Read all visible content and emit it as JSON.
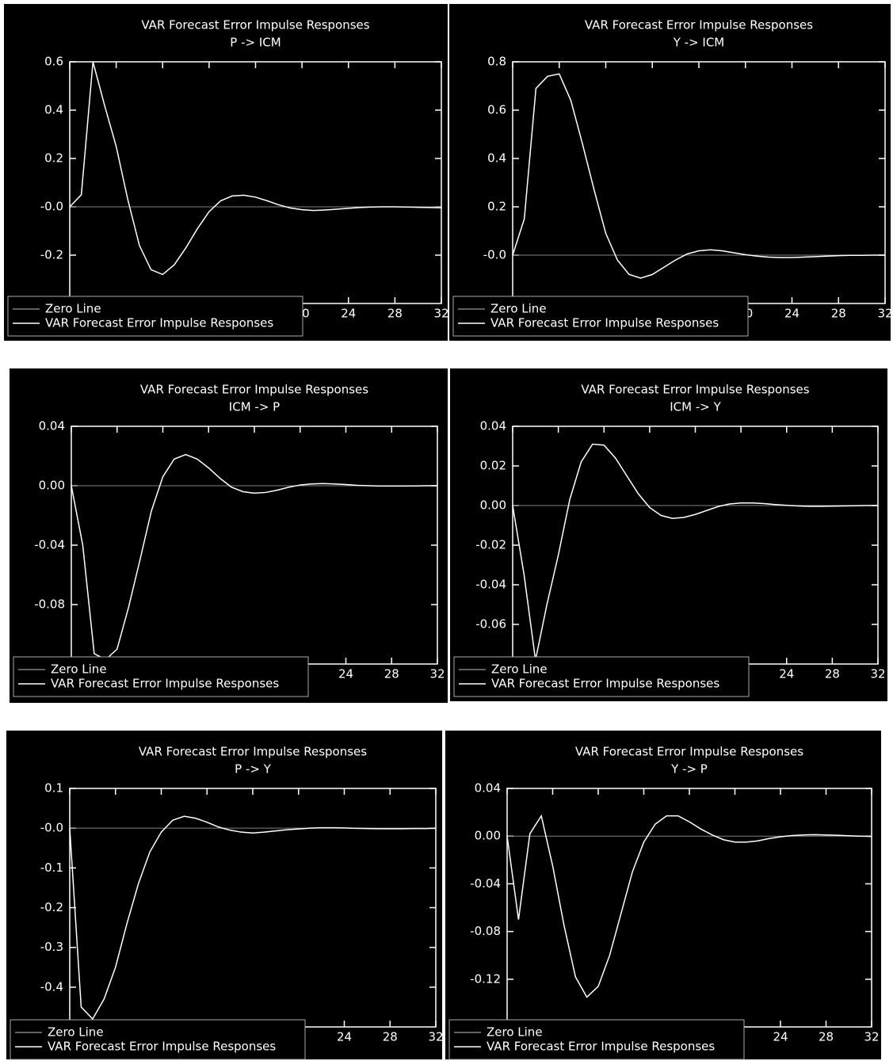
{
  "chart_data": [
    {
      "type": "line",
      "title": "VAR Forecast Error Impulse Responses",
      "subtitle": "P -> ICM",
      "x": [
        0,
        1,
        2,
        3,
        4,
        5,
        6,
        7,
        8,
        9,
        10,
        11,
        12,
        13,
        14,
        15,
        16,
        17,
        18,
        19,
        20,
        21,
        22,
        23,
        24,
        25,
        26,
        27,
        28,
        29,
        30,
        31,
        32
      ],
      "xlim": [
        0,
        32
      ],
      "xticks": [
        0,
        4,
        8,
        12,
        16,
        20,
        24,
        28,
        32
      ],
      "ylim": [
        -0.4,
        0.6
      ],
      "yticks": [
        0.6,
        0.4,
        0.2,
        {
          "value": 0,
          "label": "-0.0"
        },
        -0.2
      ],
      "series": [
        {
          "name": "Zero Line",
          "color": "#808080",
          "values": [
            0,
            0,
            0,
            0,
            0,
            0,
            0,
            0,
            0,
            0,
            0,
            0,
            0,
            0,
            0,
            0,
            0,
            0,
            0,
            0,
            0,
            0,
            0,
            0,
            0,
            0,
            0,
            0,
            0,
            0,
            0,
            0,
            0
          ]
        },
        {
          "name": "VAR Forecast Error Impulse Responses",
          "color": "#ffffff",
          "values": [
            0,
            0.05,
            0.6,
            0.42,
            0.25,
            0.03,
            -0.16,
            -0.26,
            -0.28,
            -0.24,
            -0.17,
            -0.09,
            -0.02,
            0.025,
            0.045,
            0.048,
            0.04,
            0.025,
            0.008,
            -0.005,
            -0.012,
            -0.015,
            -0.013,
            -0.01,
            -0.006,
            -0.003,
            -0.001,
            0,
            0,
            -0.001,
            -0.002,
            -0.003,
            -0.004
          ]
        }
      ]
    },
    {
      "type": "line",
      "title": "VAR Forecast Error Impulse Responses",
      "subtitle": "Y -> ICM",
      "x": [
        0,
        1,
        2,
        3,
        4,
        5,
        6,
        7,
        8,
        9,
        10,
        11,
        12,
        13,
        14,
        15,
        16,
        17,
        18,
        19,
        20,
        21,
        22,
        23,
        24,
        25,
        26,
        27,
        28,
        29,
        30,
        31,
        32
      ],
      "xlim": [
        0,
        32
      ],
      "xticks": [
        0,
        4,
        8,
        12,
        16,
        20,
        24,
        28,
        32
      ],
      "ylim": [
        -0.2,
        0.8
      ],
      "yticks": [
        0.8,
        0.6,
        0.4,
        0.2,
        {
          "value": 0,
          "label": "-0.0"
        }
      ],
      "series": [
        {
          "name": "Zero Line",
          "color": "#808080",
          "values": [
            0,
            0,
            0,
            0,
            0,
            0,
            0,
            0,
            0,
            0,
            0,
            0,
            0,
            0,
            0,
            0,
            0,
            0,
            0,
            0,
            0,
            0,
            0,
            0,
            0,
            0,
            0,
            0,
            0,
            0,
            0,
            0,
            0
          ]
        },
        {
          "name": "VAR Forecast Error Impulse Responses",
          "color": "#ffffff",
          "values": [
            0,
            0.15,
            0.69,
            0.74,
            0.75,
            0.64,
            0.46,
            0.27,
            0.09,
            -0.02,
            -0.08,
            -0.095,
            -0.08,
            -0.05,
            -0.02,
            0.005,
            0.018,
            0.022,
            0.018,
            0.01,
            0.002,
            -0.004,
            -0.008,
            -0.01,
            -0.01,
            -0.008,
            -0.006,
            -0.004,
            -0.002,
            -0.001,
            -0.001,
            0,
            0
          ]
        }
      ]
    },
    {
      "type": "line",
      "title": "VAR Forecast Error Impulse Responses",
      "subtitle": "ICM -> P",
      "x": [
        0,
        1,
        2,
        3,
        4,
        5,
        6,
        7,
        8,
        9,
        10,
        11,
        12,
        13,
        14,
        15,
        16,
        17,
        18,
        19,
        20,
        21,
        22,
        23,
        24,
        25,
        26,
        27,
        28,
        29,
        30,
        31,
        32
      ],
      "xlim": [
        0,
        32
      ],
      "xticks": [
        0,
        4,
        8,
        12,
        16,
        20,
        24,
        28,
        32
      ],
      "ylim": [
        -0.12,
        0.04
      ],
      "yticks": [
        0.04,
        {
          "value": 0,
          "label": "0.00"
        },
        -0.04,
        -0.08
      ],
      "series": [
        {
          "name": "Zero Line",
          "color": "#808080",
          "values": [
            0,
            0,
            0,
            0,
            0,
            0,
            0,
            0,
            0,
            0,
            0,
            0,
            0,
            0,
            0,
            0,
            0,
            0,
            0,
            0,
            0,
            0,
            0,
            0,
            0,
            0,
            0,
            0,
            0,
            0,
            0,
            0,
            0
          ]
        },
        {
          "name": "VAR Forecast Error Impulse Responses",
          "color": "#ffffff",
          "values": [
            0,
            -0.04,
            -0.113,
            -0.117,
            -0.11,
            -0.082,
            -0.05,
            -0.017,
            0.006,
            0.018,
            0.021,
            0.018,
            0.012,
            0.005,
            -0.001,
            -0.004,
            -0.005,
            -0.0045,
            -0.003,
            -0.001,
            0.0005,
            0.0012,
            0.0015,
            0.0012,
            0.0008,
            0.0003,
            0,
            -0.0002,
            -0.0002,
            -0.0002,
            -0.0001,
            0,
            0
          ]
        }
      ]
    },
    {
      "type": "line",
      "title": "VAR Forecast Error Impulse Responses",
      "subtitle": "ICM -> Y",
      "x": [
        0,
        1,
        2,
        3,
        4,
        5,
        6,
        7,
        8,
        9,
        10,
        11,
        12,
        13,
        14,
        15,
        16,
        17,
        18,
        19,
        20,
        21,
        22,
        23,
        24,
        25,
        26,
        27,
        28,
        29,
        30,
        31,
        32
      ],
      "xlim": [
        0,
        32
      ],
      "xticks": [
        0,
        4,
        8,
        12,
        16,
        20,
        24,
        28,
        32
      ],
      "ylim": [
        -0.08,
        0.04
      ],
      "yticks": [
        0.04,
        0.02,
        {
          "value": 0,
          "label": "0.00"
        },
        -0.02,
        -0.04,
        -0.06
      ],
      "series": [
        {
          "name": "Zero Line",
          "color": "#808080",
          "values": [
            0,
            0,
            0,
            0,
            0,
            0,
            0,
            0,
            0,
            0,
            0,
            0,
            0,
            0,
            0,
            0,
            0,
            0,
            0,
            0,
            0,
            0,
            0,
            0,
            0,
            0,
            0,
            0,
            0,
            0,
            0,
            0,
            0
          ]
        },
        {
          "name": "VAR Forecast Error Impulse Responses",
          "color": "#ffffff",
          "values": [
            0,
            -0.035,
            -0.078,
            -0.05,
            -0.025,
            0.003,
            0.022,
            0.031,
            0.0305,
            0.024,
            0.015,
            0.006,
            -0.001,
            -0.005,
            -0.0065,
            -0.006,
            -0.0045,
            -0.0025,
            -0.0005,
            0.0008,
            0.0013,
            0.0013,
            0.001,
            0.0005,
            0.0001,
            -0.0002,
            -0.0004,
            -0.0004,
            -0.0003,
            -0.0002,
            -0.0001,
            0,
            0
          ]
        }
      ]
    },
    {
      "type": "line",
      "title": "VAR Forecast Error Impulse Responses",
      "subtitle": "P -> Y",
      "x": [
        0,
        1,
        2,
        3,
        4,
        5,
        6,
        7,
        8,
        9,
        10,
        11,
        12,
        13,
        14,
        15,
        16,
        17,
        18,
        19,
        20,
        21,
        22,
        23,
        24,
        25,
        26,
        27,
        28,
        29,
        30,
        31,
        32
      ],
      "xlim": [
        0,
        32
      ],
      "xticks": [
        0,
        4,
        8,
        12,
        16,
        20,
        24,
        28,
        32
      ],
      "ylim": [
        -0.5,
        0.1
      ],
      "yticks": [
        0.1,
        {
          "value": 0,
          "label": "-0.0"
        },
        -0.1,
        -0.2,
        -0.3,
        -0.4
      ],
      "series": [
        {
          "name": "Zero Line",
          "color": "#808080",
          "values": [
            0,
            0,
            0,
            0,
            0,
            0,
            0,
            0,
            0,
            0,
            0,
            0,
            0,
            0,
            0,
            0,
            0,
            0,
            0,
            0,
            0,
            0,
            0,
            0,
            0,
            0,
            0,
            0,
            0,
            0,
            0,
            0,
            0
          ]
        },
        {
          "name": "VAR Forecast Error Impulse Responses",
          "color": "#ffffff",
          "values": [
            0,
            -0.45,
            -0.48,
            -0.43,
            -0.35,
            -0.24,
            -0.14,
            -0.06,
            -0.01,
            0.02,
            0.03,
            0.025,
            0.015,
            0.003,
            -0.005,
            -0.01,
            -0.012,
            -0.01,
            -0.007,
            -0.004,
            -0.002,
            0,
            0.001,
            0.001,
            0.0005,
            -0.0005,
            -0.001,
            -0.0015,
            -0.0015,
            -0.0015,
            -0.001,
            -0.0008,
            -0.0005
          ]
        }
      ]
    },
    {
      "type": "line",
      "title": "VAR Forecast Error Impulse Responses",
      "subtitle": "Y -> P",
      "x": [
        0,
        1,
        2,
        3,
        4,
        5,
        6,
        7,
        8,
        9,
        10,
        11,
        12,
        13,
        14,
        15,
        16,
        17,
        18,
        19,
        20,
        21,
        22,
        23,
        24,
        25,
        26,
        27,
        28,
        29,
        30,
        31,
        32
      ],
      "xlim": [
        0,
        32
      ],
      "xticks": [
        0,
        4,
        8,
        12,
        16,
        20,
        24,
        28,
        32
      ],
      "ylim": [
        -0.16,
        0.04
      ],
      "yticks": [
        0.04,
        {
          "value": 0,
          "label": "0.00"
        },
        -0.04,
        -0.08,
        -0.12
      ],
      "series": [
        {
          "name": "Zero Line",
          "color": "#808080",
          "values": [
            0,
            0,
            0,
            0,
            0,
            0,
            0,
            0,
            0,
            0,
            0,
            0,
            0,
            0,
            0,
            0,
            0,
            0,
            0,
            0,
            0,
            0,
            0,
            0,
            0,
            0,
            0,
            0,
            0,
            0,
            0,
            0,
            0
          ]
        },
        {
          "name": "VAR Forecast Error Impulse Responses",
          "color": "#ffffff",
          "values": [
            0,
            -0.07,
            0.002,
            0.017,
            -0.025,
            -0.075,
            -0.118,
            -0.135,
            -0.126,
            -0.1,
            -0.065,
            -0.03,
            -0.005,
            0.01,
            0.017,
            0.017,
            0.012,
            0.006,
            0.001,
            -0.003,
            -0.005,
            -0.005,
            -0.004,
            -0.002,
            -0.0005,
            0.0005,
            0.001,
            0.0012,
            0.001,
            0.0007,
            0.0003,
            0,
            -0.0003
          ]
        }
      ]
    }
  ]
}
